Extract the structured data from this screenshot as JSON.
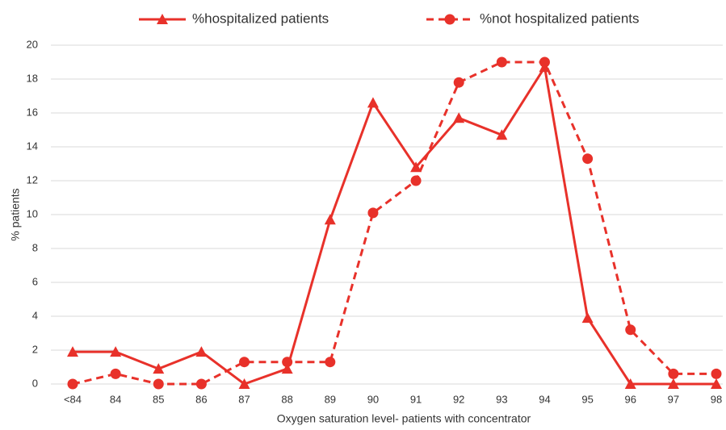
{
  "chart_data": {
    "type": "line",
    "xlabel": "Oxygen saturation level- patients with concentrator",
    "ylabel": "% patients",
    "categories": [
      "<84",
      "84",
      "85",
      "86",
      "87",
      "88",
      "89",
      "90",
      "91",
      "92",
      "93",
      "94",
      "95",
      "96",
      "97",
      "98"
    ],
    "series": [
      {
        "name": "%hospitalized patients",
        "color": "#e8312a",
        "marker": "triangle",
        "dashed": false,
        "values": [
          1.9,
          1.9,
          0.9,
          1.9,
          0,
          0.9,
          9.7,
          16.6,
          12.8,
          15.7,
          14.7,
          18.7,
          3.9,
          0,
          0,
          0
        ]
      },
      {
        "name": "%not hospitalized patients",
        "color": "#e8312a",
        "marker": "circle",
        "dashed": true,
        "values": [
          0,
          0.6,
          0,
          0,
          1.3,
          1.3,
          1.3,
          10.1,
          12.0,
          17.8,
          19.0,
          19.0,
          13.3,
          3.2,
          0.6,
          0.6
        ]
      }
    ],
    "ylim": [
      0,
      20
    ],
    "yticks": [
      0,
      2,
      4,
      6,
      8,
      10,
      12,
      14,
      16,
      18,
      20
    ],
    "grid": true,
    "legend": "top"
  }
}
